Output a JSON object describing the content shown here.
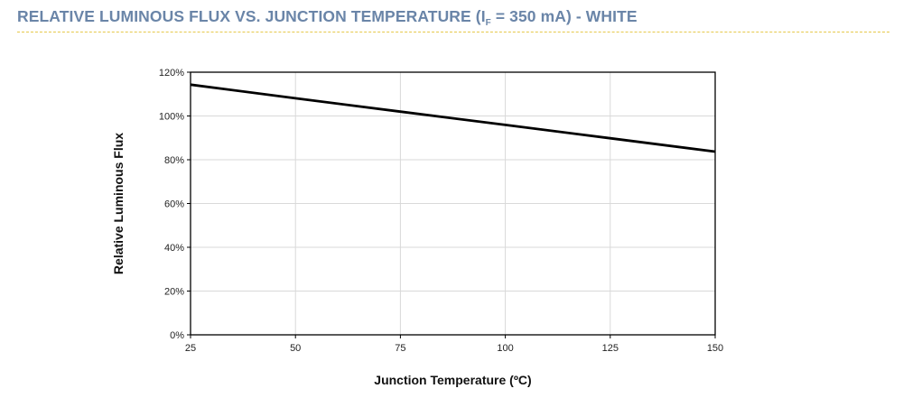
{
  "header": {
    "title_prefix": "RELATIVE LUMINOUS FLUX VS. JUNCTION TEMPERATURE (I",
    "title_sub": "F",
    "title_suffix": " = 350 mA) - WHITE"
  },
  "colors": {
    "title": "#6a85a8",
    "rule": "#e6c84a",
    "grid": "#d9d9d9",
    "line": "#000000"
  },
  "chart_data": {
    "type": "line",
    "title": "RELATIVE LUMINOUS FLUX VS. JUNCTION TEMPERATURE (IF = 350 mA) - WHITE",
    "xlabel": "Junction Temperature (ºC)",
    "ylabel": "Relative Luminous Flux",
    "xlim": [
      25,
      150
    ],
    "ylim": [
      0,
      120
    ],
    "x_ticks": [
      25,
      50,
      75,
      100,
      125,
      150
    ],
    "y_ticks": [
      0,
      20,
      40,
      60,
      80,
      100,
      120
    ],
    "y_tick_labels": [
      "0%",
      "20%",
      "40%",
      "60%",
      "80%",
      "100%",
      "120%"
    ],
    "grid": true,
    "legend": "none",
    "series": [
      {
        "x": [
          25,
          50,
          75,
          100,
          125,
          150
        ],
        "y": [
          114.3,
          108.1,
          102.0,
          95.9,
          89.8,
          83.7
        ]
      }
    ]
  }
}
